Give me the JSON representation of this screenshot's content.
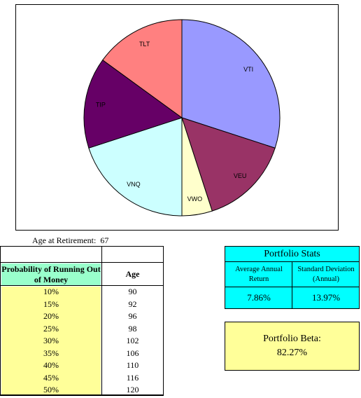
{
  "chart_data": {
    "type": "pie",
    "title": "",
    "slices": [
      {
        "label": "VTI",
        "value": 30,
        "color": "#9999ff"
      },
      {
        "label": "VEU",
        "value": 15,
        "color": "#993366"
      },
      {
        "label": "VWO",
        "value": 5,
        "color": "#ffffcc"
      },
      {
        "label": "VNQ",
        "value": 20,
        "color": "#ccffff"
      },
      {
        "label": "TIP",
        "value": 15,
        "color": "#660066"
      },
      {
        "label": "TLT",
        "value": 15,
        "color": "#ff8080"
      }
    ]
  },
  "retirement": {
    "label": "Age at Retirement:",
    "value": "67"
  },
  "table": {
    "header_prob": "Probability of Running Out of Money",
    "header_age": "Age",
    "rows": [
      {
        "prob": "10%",
        "age": "90"
      },
      {
        "prob": "15%",
        "age": "92"
      },
      {
        "prob": "20%",
        "age": "96"
      },
      {
        "prob": "25%",
        "age": "98"
      },
      {
        "prob": "30%",
        "age": "102"
      },
      {
        "prob": "35%",
        "age": "106"
      },
      {
        "prob": "40%",
        "age": "110"
      },
      {
        "prob": "45%",
        "age": "116"
      },
      {
        "prob": "50%",
        "age": "120"
      }
    ]
  },
  "stats": {
    "title": "Portfolio Stats",
    "avg_label": "Average Annual Return",
    "sd_label": "Standard Deviation (Annual)",
    "avg_value": "7.86%",
    "sd_value": "13.97%"
  },
  "beta": {
    "label": "Portfolio Beta:",
    "value": "82.27%"
  }
}
